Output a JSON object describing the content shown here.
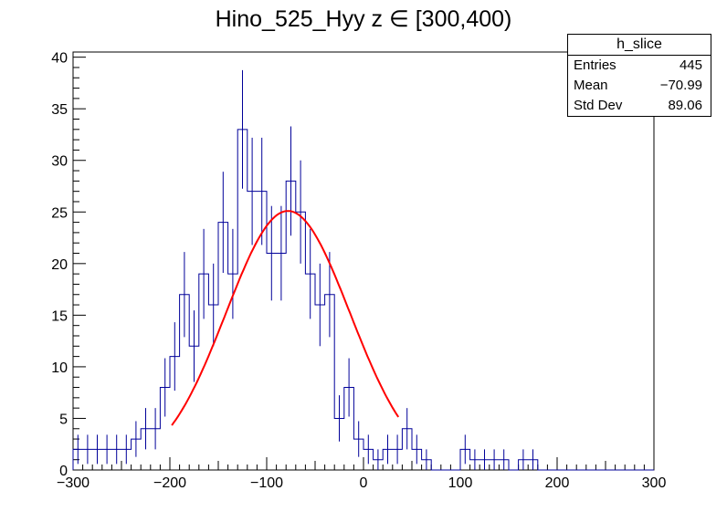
{
  "chart_data": {
    "type": "histogram",
    "title": "Hino_525_Hyy z  ∈ [300,400)",
    "xlim": [
      -300,
      300
    ],
    "ylim": [
      0,
      40.5
    ],
    "bin_width": 10,
    "x_tick_labels": [
      "−300",
      "−200",
      "−100",
      "0",
      "100",
      "200",
      "300"
    ],
    "x_tick_values": [
      -300,
      -200,
      -100,
      0,
      100,
      200,
      300
    ],
    "y_tick_labels": [
      "0",
      "5",
      "10",
      "15",
      "20",
      "25",
      "30",
      "35",
      "40"
    ],
    "y_tick_values": [
      0,
      5,
      10,
      15,
      20,
      25,
      30,
      35,
      40
    ],
    "bin_contents": [
      2,
      2,
      2,
      2,
      2,
      2,
      3,
      4,
      4,
      8,
      11,
      17,
      12,
      19,
      16,
      24,
      19,
      33,
      27,
      27,
      21,
      21,
      28,
      25,
      19,
      16,
      17,
      5,
      8,
      3,
      2,
      1,
      2,
      2,
      4,
      2,
      1,
      0,
      0,
      0,
      2,
      1,
      1,
      1,
      1,
      0,
      1,
      1,
      0,
      0,
      0,
      0,
      0,
      0,
      0,
      0,
      0,
      0,
      0,
      0
    ],
    "fit": {
      "function": "gaussian",
      "constant": 25.1,
      "mean": -78,
      "sigma": 64,
      "x_range": [
        -198,
        36
      ]
    },
    "colors": {
      "histogram": "#000099",
      "error_bars": "#000099",
      "fit": "#ff0000"
    }
  },
  "stats": {
    "name": "h_slice",
    "rows": [
      {
        "label": "Entries",
        "value": "445"
      },
      {
        "label": "Mean",
        "value": "−70.99"
      },
      {
        "label": "Std Dev",
        "value": "89.06"
      }
    ]
  }
}
